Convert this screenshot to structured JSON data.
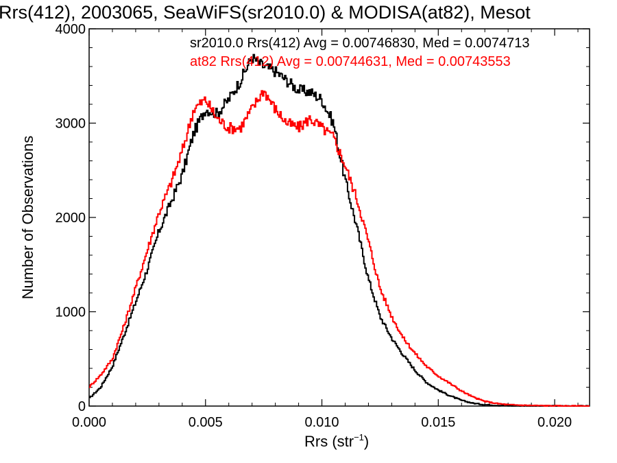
{
  "chart_data": {
    "type": "line",
    "title": "Rrs(412), 2003065, SeaWiFS(sr2010.0) & MODISA(at82), Mesot",
    "xlabel_main": "Rrs (str",
    "xlabel_sup": "−1",
    "xlabel_close": ")",
    "ylabel": "Number of Observations",
    "xlim": [
      0.0,
      0.0215
    ],
    "ylim": [
      0,
      4000
    ],
    "x_ticks": [
      "0.000",
      "0.005",
      "0.010",
      "0.015",
      "0.020"
    ],
    "y_ticks": [
      "0",
      "1000",
      "2000",
      "3000",
      "4000"
    ],
    "grid": false,
    "legend_placement": "top",
    "step": true,
    "series": [
      {
        "name": "sr2010.0",
        "color": "#000000",
        "legend_text": "sr2010.0 Rrs(412) Avg = 0.00746830, Med = 0.0074713",
        "points": [
          [
            0.0,
            80
          ],
          [
            0.0005,
            200
          ],
          [
            0.001,
            420
          ],
          [
            0.0015,
            750
          ],
          [
            0.002,
            1100
          ],
          [
            0.0025,
            1450
          ],
          [
            0.003,
            1850
          ],
          [
            0.0035,
            2150
          ],
          [
            0.004,
            2450
          ],
          [
            0.0045,
            2900
          ],
          [
            0.005,
            3150
          ],
          [
            0.0055,
            3100
          ],
          [
            0.006,
            3250
          ],
          [
            0.0065,
            3450
          ],
          [
            0.007,
            3700
          ],
          [
            0.0075,
            3600
          ],
          [
            0.008,
            3550
          ],
          [
            0.0085,
            3450
          ],
          [
            0.009,
            3350
          ],
          [
            0.0095,
            3330
          ],
          [
            0.01,
            3250
          ],
          [
            0.0105,
            3000
          ],
          [
            0.011,
            2400
          ],
          [
            0.0115,
            1900
          ],
          [
            0.012,
            1350
          ],
          [
            0.0125,
            950
          ],
          [
            0.013,
            720
          ],
          [
            0.0135,
            540
          ],
          [
            0.014,
            380
          ],
          [
            0.0145,
            250
          ],
          [
            0.015,
            170
          ],
          [
            0.0155,
            110
          ],
          [
            0.016,
            60
          ],
          [
            0.0165,
            30
          ],
          [
            0.017,
            15
          ],
          [
            0.0175,
            8
          ],
          [
            0.018,
            4
          ],
          [
            0.019,
            2
          ],
          [
            0.02,
            1
          ],
          [
            0.0215,
            0
          ]
        ]
      },
      {
        "name": "at82",
        "color": "#ff0000",
        "legend_text": "at82 Rrs(412) Avg = 0.00744631, Med = 0.00743553",
        "points": [
          [
            0.0,
            200
          ],
          [
            0.0005,
            330
          ],
          [
            0.001,
            500
          ],
          [
            0.0015,
            850
          ],
          [
            0.002,
            1250
          ],
          [
            0.0025,
            1650
          ],
          [
            0.003,
            2050
          ],
          [
            0.0035,
            2350
          ],
          [
            0.004,
            2700
          ],
          [
            0.0045,
            3150
          ],
          [
            0.005,
            3250
          ],
          [
            0.0055,
            3050
          ],
          [
            0.006,
            2950
          ],
          [
            0.0065,
            2950
          ],
          [
            0.007,
            3150
          ],
          [
            0.0075,
            3350
          ],
          [
            0.008,
            3150
          ],
          [
            0.0085,
            3000
          ],
          [
            0.009,
            2950
          ],
          [
            0.0095,
            3050
          ],
          [
            0.01,
            2950
          ],
          [
            0.0105,
            2850
          ],
          [
            0.011,
            2550
          ],
          [
            0.0115,
            2200
          ],
          [
            0.012,
            1750
          ],
          [
            0.0125,
            1250
          ],
          [
            0.013,
            950
          ],
          [
            0.0135,
            720
          ],
          [
            0.014,
            560
          ],
          [
            0.0145,
            420
          ],
          [
            0.015,
            320
          ],
          [
            0.0155,
            240
          ],
          [
            0.016,
            160
          ],
          [
            0.0165,
            95
          ],
          [
            0.017,
            50
          ],
          [
            0.0175,
            28
          ],
          [
            0.018,
            14
          ],
          [
            0.019,
            6
          ],
          [
            0.02,
            2
          ],
          [
            0.0215,
            0
          ]
        ]
      }
    ]
  }
}
